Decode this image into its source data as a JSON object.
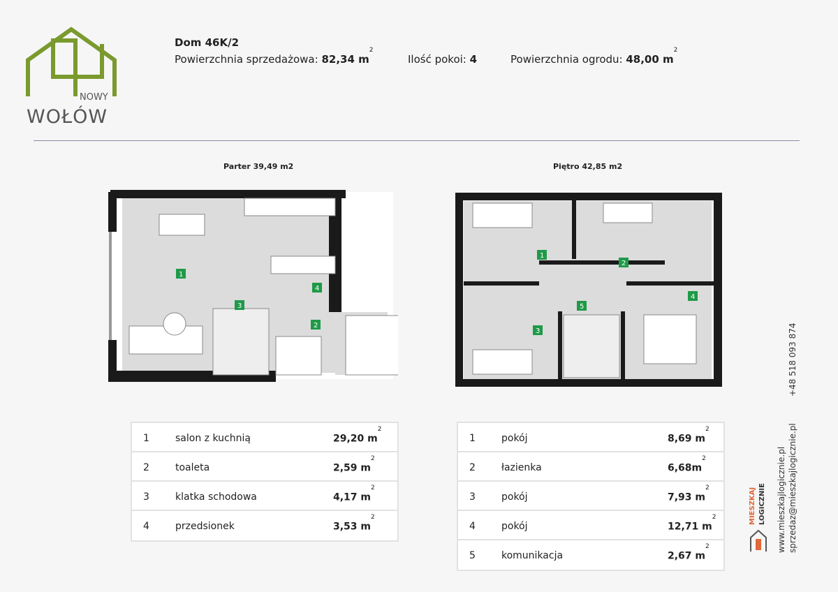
{
  "logo": {
    "top": "NOWY",
    "main": "WOŁÓW",
    "color": "#7a9a2e"
  },
  "header": {
    "title": "Dom 46K/2",
    "area_label": "Powierzchnia sprzedażowa:",
    "area_value": "82,34 m",
    "rooms_label": "Ilość pokoi:",
    "rooms_value": "4",
    "garden_label": "Powierzchnia ogrodu:",
    "garden_value": "48,00 m",
    "sup": "2"
  },
  "plans": {
    "ground": "Parter 39,49 m2",
    "upper": "Piętro 42,85 m2",
    "badge_color": "#1f9a48"
  },
  "ground_rooms": [
    {
      "no": "1",
      "name": "salon z kuchnią",
      "area": "29,20 m"
    },
    {
      "no": "2",
      "name": "toaleta",
      "area": "2,59 m"
    },
    {
      "no": "3",
      "name": "klatka schodowa",
      "area": "4,17 m"
    },
    {
      "no": "4",
      "name": "przedsionek",
      "area": "3,53 m"
    }
  ],
  "upper_rooms": [
    {
      "no": "1",
      "name": "pokój",
      "area": "8,69 m"
    },
    {
      "no": "2",
      "name": "łazienka",
      "area": "6,68m"
    },
    {
      "no": "3",
      "name": "pokój",
      "area": "7,93 m"
    },
    {
      "no": "4",
      "name": "pokój",
      "area": "12,71 m"
    },
    {
      "no": "5",
      "name": "komunikacja",
      "area": "2,67 m"
    }
  ],
  "contact": {
    "brand1": "MIESZKAJ",
    "brand2": "LOGICZNIE",
    "www": "www.mieszkajlogicznie.pl",
    "email": "sprzedaz@mieszkajlogicznie.pl",
    "phone": "+48 518 093 874"
  }
}
